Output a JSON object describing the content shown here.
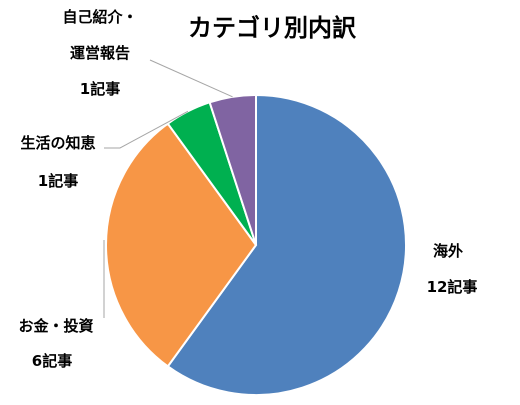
{
  "chart_data": {
    "type": "pie",
    "title": "カテゴリ別内訳",
    "unit": "記事",
    "slices": [
      {
        "label": "海外",
        "value": 12,
        "value_label": "12記事",
        "color": "#4f81bd"
      },
      {
        "label": "お金・投資",
        "value": 6,
        "value_label": "6記事",
        "color": "#f79646"
      },
      {
        "label": "生活の知恵",
        "value": 1,
        "value_label": "1記事",
        "color": "#00b050"
      },
      {
        "label_lines": [
          "自己紹介・",
          "運営報告"
        ],
        "value": 1,
        "value_label": "1記事",
        "color": "#8064a2"
      }
    ]
  }
}
